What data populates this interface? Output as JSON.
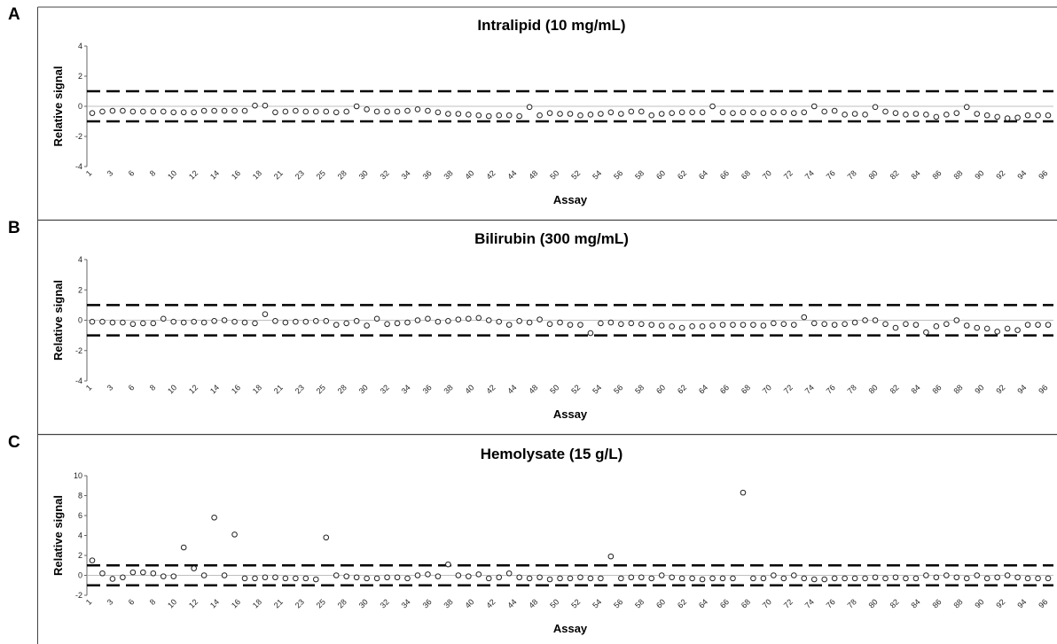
{
  "chart_data": [
    {
      "panel": "A",
      "type": "scatter",
      "title": "Intralipid (10 mg/mL)",
      "xlabel": "Assay",
      "ylabel": "Relative signal",
      "ylim": [
        -4,
        4
      ],
      "yticks": [
        -4,
        -2,
        0,
        2,
        4
      ],
      "reference_lines": [
        1,
        -1
      ],
      "x_tick_labels": [
        "1",
        "3",
        "6",
        "8",
        "10",
        "12",
        "14",
        "16",
        "18",
        "21",
        "23",
        "25",
        "28",
        "30",
        "32",
        "34",
        "36",
        "38",
        "40",
        "42",
        "44",
        "48",
        "50",
        "52",
        "54",
        "56",
        "58",
        "60",
        "62",
        "64",
        "66",
        "68",
        "70",
        "72",
        "74",
        "76",
        "78",
        "80",
        "82",
        "84",
        "86",
        "88",
        "90",
        "92",
        "94",
        "96"
      ],
      "values": [
        -0.45,
        -0.35,
        -0.3,
        -0.3,
        -0.35,
        -0.35,
        -0.35,
        -0.35,
        -0.4,
        -0.4,
        -0.4,
        -0.3,
        -0.3,
        -0.3,
        -0.3,
        -0.3,
        0.05,
        0.05,
        -0.4,
        -0.35,
        -0.3,
        -0.35,
        -0.35,
        -0.35,
        -0.4,
        -0.35,
        0.0,
        -0.2,
        -0.35,
        -0.35,
        -0.35,
        -0.3,
        -0.2,
        -0.3,
        -0.4,
        -0.5,
        -0.5,
        -0.55,
        -0.6,
        -0.65,
        -0.6,
        -0.6,
        -0.65,
        -0.05,
        -0.6,
        -0.45,
        -0.5,
        -0.5,
        -0.6,
        -0.55,
        -0.5,
        -0.4,
        -0.5,
        -0.35,
        -0.35,
        -0.6,
        -0.5,
        -0.45,
        -0.4,
        -0.4,
        -0.4,
        0.0,
        -0.4,
        -0.45,
        -0.4,
        -0.4,
        -0.45,
        -0.4,
        -0.4,
        -0.45,
        -0.4,
        0.0,
        -0.35,
        -0.3,
        -0.55,
        -0.5,
        -0.55,
        -0.05,
        -0.35,
        -0.45,
        -0.55,
        -0.5,
        -0.55,
        -0.7,
        -0.55,
        -0.45,
        -0.05,
        -0.5,
        -0.6,
        -0.7,
        -0.8,
        -0.75,
        -0.6,
        -0.6,
        -0.6
      ]
    },
    {
      "panel": "B",
      "type": "scatter",
      "title": "Bilirubin (300 mg/mL)",
      "xlabel": "Assay",
      "ylabel": "Relative signal",
      "ylim": [
        -4,
        4
      ],
      "yticks": [
        -4,
        -2,
        0,
        2,
        4
      ],
      "reference_lines": [
        1,
        -1
      ],
      "x_tick_labels": [
        "1",
        "3",
        "6",
        "8",
        "10",
        "12",
        "14",
        "16",
        "18",
        "21",
        "23",
        "25",
        "28",
        "30",
        "32",
        "34",
        "36",
        "38",
        "40",
        "42",
        "44",
        "48",
        "50",
        "52",
        "54",
        "56",
        "58",
        "60",
        "62",
        "64",
        "66",
        "68",
        "70",
        "72",
        "74",
        "76",
        "78",
        "80",
        "82",
        "84",
        "86",
        "88",
        "90",
        "92",
        "94",
        "96"
      ],
      "values": [
        -0.1,
        -0.1,
        -0.15,
        -0.15,
        -0.25,
        -0.2,
        -0.2,
        0.1,
        -0.1,
        -0.15,
        -0.1,
        -0.15,
        -0.05,
        0.0,
        -0.1,
        -0.15,
        -0.2,
        0.4,
        -0.05,
        -0.15,
        -0.1,
        -0.1,
        -0.05,
        -0.05,
        -0.3,
        -0.2,
        -0.05,
        -0.35,
        0.1,
        -0.25,
        -0.2,
        -0.15,
        0.0,
        0.1,
        -0.1,
        -0.05,
        0.05,
        0.1,
        0.15,
        0.0,
        -0.1,
        -0.3,
        -0.05,
        -0.15,
        0.05,
        -0.25,
        -0.15,
        -0.3,
        -0.3,
        -0.85,
        -0.2,
        -0.15,
        -0.25,
        -0.2,
        -0.25,
        -0.3,
        -0.35,
        -0.4,
        -0.5,
        -0.4,
        -0.4,
        -0.35,
        -0.3,
        -0.3,
        -0.3,
        -0.3,
        -0.35,
        -0.2,
        -0.25,
        -0.3,
        0.2,
        -0.2,
        -0.25,
        -0.3,
        -0.25,
        -0.15,
        0.0,
        0.0,
        -0.25,
        -0.5,
        -0.25,
        -0.3,
        -0.8,
        -0.4,
        -0.25,
        0.0,
        -0.35,
        -0.5,
        -0.55,
        -0.75,
        -0.55,
        -0.65,
        -0.3,
        -0.3,
        -0.3
      ]
    },
    {
      "panel": "C",
      "type": "scatter",
      "title": "Hemolysate (15 g/L)",
      "xlabel": "Assay",
      "ylabel": "Relative signal",
      "ylim": [
        -2,
        10
      ],
      "yticks": [
        -2,
        0,
        2,
        4,
        6,
        8,
        10
      ],
      "reference_lines": [
        1,
        -1
      ],
      "x_tick_labels": [
        "1",
        "3",
        "6",
        "8",
        "10",
        "12",
        "14",
        "16",
        "18",
        "21",
        "23",
        "25",
        "28",
        "30",
        "32",
        "34",
        "36",
        "38",
        "40",
        "42",
        "44",
        "48",
        "50",
        "52",
        "54",
        "56",
        "58",
        "60",
        "62",
        "64",
        "66",
        "68",
        "70",
        "72",
        "74",
        "76",
        "78",
        "80",
        "82",
        "84",
        "86",
        "88",
        "90",
        "92",
        "94",
        "96"
      ],
      "values": [
        1.5,
        0.2,
        -0.35,
        -0.2,
        0.3,
        0.3,
        0.2,
        -0.1,
        -0.1,
        2.8,
        0.7,
        0.0,
        5.8,
        0.0,
        4.1,
        -0.3,
        -0.3,
        -0.2,
        -0.2,
        -0.3,
        -0.3,
        -0.3,
        -0.4,
        3.8,
        0.0,
        -0.1,
        -0.2,
        -0.3,
        -0.3,
        -0.2,
        -0.2,
        -0.3,
        0.0,
        0.1,
        -0.1,
        1.1,
        0.0,
        -0.1,
        0.1,
        -0.3,
        -0.2,
        0.2,
        -0.2,
        -0.3,
        -0.2,
        -0.4,
        -0.3,
        -0.3,
        -0.2,
        -0.3,
        -0.3,
        1.9,
        -0.3,
        -0.2,
        -0.2,
        -0.3,
        0.0,
        -0.2,
        -0.3,
        -0.3,
        -0.4,
        -0.3,
        -0.3,
        -0.3,
        8.3,
        -0.3,
        -0.3,
        0.0,
        -0.3,
        0.0,
        -0.3,
        -0.4,
        -0.4,
        -0.3,
        -0.3,
        -0.3,
        -0.3,
        -0.2,
        -0.3,
        -0.2,
        -0.3,
        -0.3,
        0.0,
        -0.2,
        0.0,
        -0.2,
        -0.3,
        0.0,
        -0.3,
        -0.2,
        0.0,
        -0.2,
        -0.3,
        -0.3,
        -0.3
      ]
    }
  ]
}
